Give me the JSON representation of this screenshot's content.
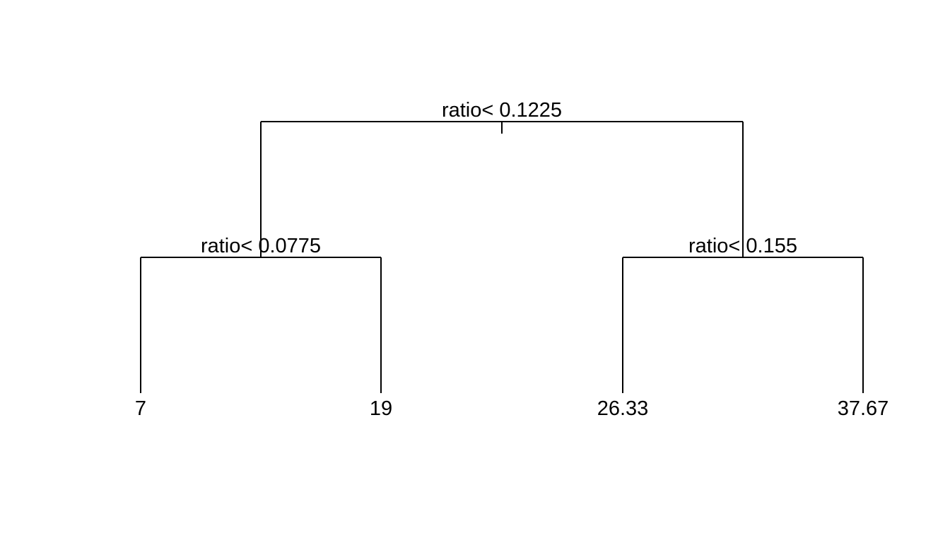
{
  "tree": {
    "root": {
      "split": "ratio< 0.1225",
      "left": {
        "split": "ratio< 0.0775",
        "left": {
          "leaf": "7"
        },
        "right": {
          "leaf": "19"
        }
      },
      "right": {
        "split": "ratio< 0.155",
        "left": {
          "leaf": "26.33"
        },
        "right": {
          "leaf": "37.67"
        }
      }
    }
  },
  "colors": {
    "line": "#000000",
    "background": "#ffffff"
  }
}
